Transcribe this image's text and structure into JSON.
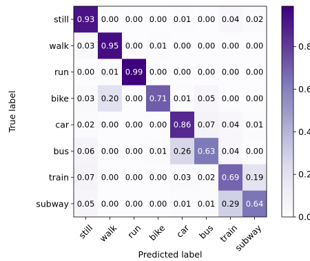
{
  "chart_data": {
    "type": "heatmap",
    "title": "",
    "xlabel": "Predicted label",
    "ylabel": "True label",
    "x_categories": [
      "still",
      "walk",
      "run",
      "bike",
      "car",
      "bus",
      "train",
      "subway"
    ],
    "y_categories": [
      "still",
      "walk",
      "run",
      "bike",
      "car",
      "bus",
      "train",
      "subway"
    ],
    "values": [
      [
        0.93,
        0.0,
        0.0,
        0.0,
        0.01,
        0.0,
        0.04,
        0.02
      ],
      [
        0.03,
        0.95,
        0.0,
        0.01,
        0.0,
        0.0,
        0.0,
        0.0
      ],
      [
        0.0,
        0.01,
        0.99,
        0.0,
        0.0,
        0.0,
        0.0,
        0.0
      ],
      [
        0.03,
        0.2,
        0.0,
        0.71,
        0.01,
        0.05,
        0.0,
        0.0
      ],
      [
        0.02,
        0.0,
        0.0,
        0.0,
        0.86,
        0.07,
        0.04,
        0.01
      ],
      [
        0.06,
        0.0,
        0.0,
        0.01,
        0.26,
        0.63,
        0.04,
        0.0
      ],
      [
        0.07,
        0.0,
        0.0,
        0.0,
        0.03,
        0.02,
        0.69,
        0.19
      ],
      [
        0.05,
        0.0,
        0.0,
        0.0,
        0.01,
        0.01,
        0.29,
        0.64
      ]
    ],
    "value_format": "0.00",
    "colormap": "Purples",
    "color_low": "#fcfbfd",
    "color_high": "#3f007d",
    "vmin": 0.0,
    "vmax": 0.99,
    "colorbar_ticks": [
      0.0,
      0.2,
      0.4,
      0.6,
      0.8
    ],
    "colorbar_tick_labels": [
      "0.0",
      "0.2",
      "0.4",
      "0.6",
      "0.8"
    ]
  }
}
